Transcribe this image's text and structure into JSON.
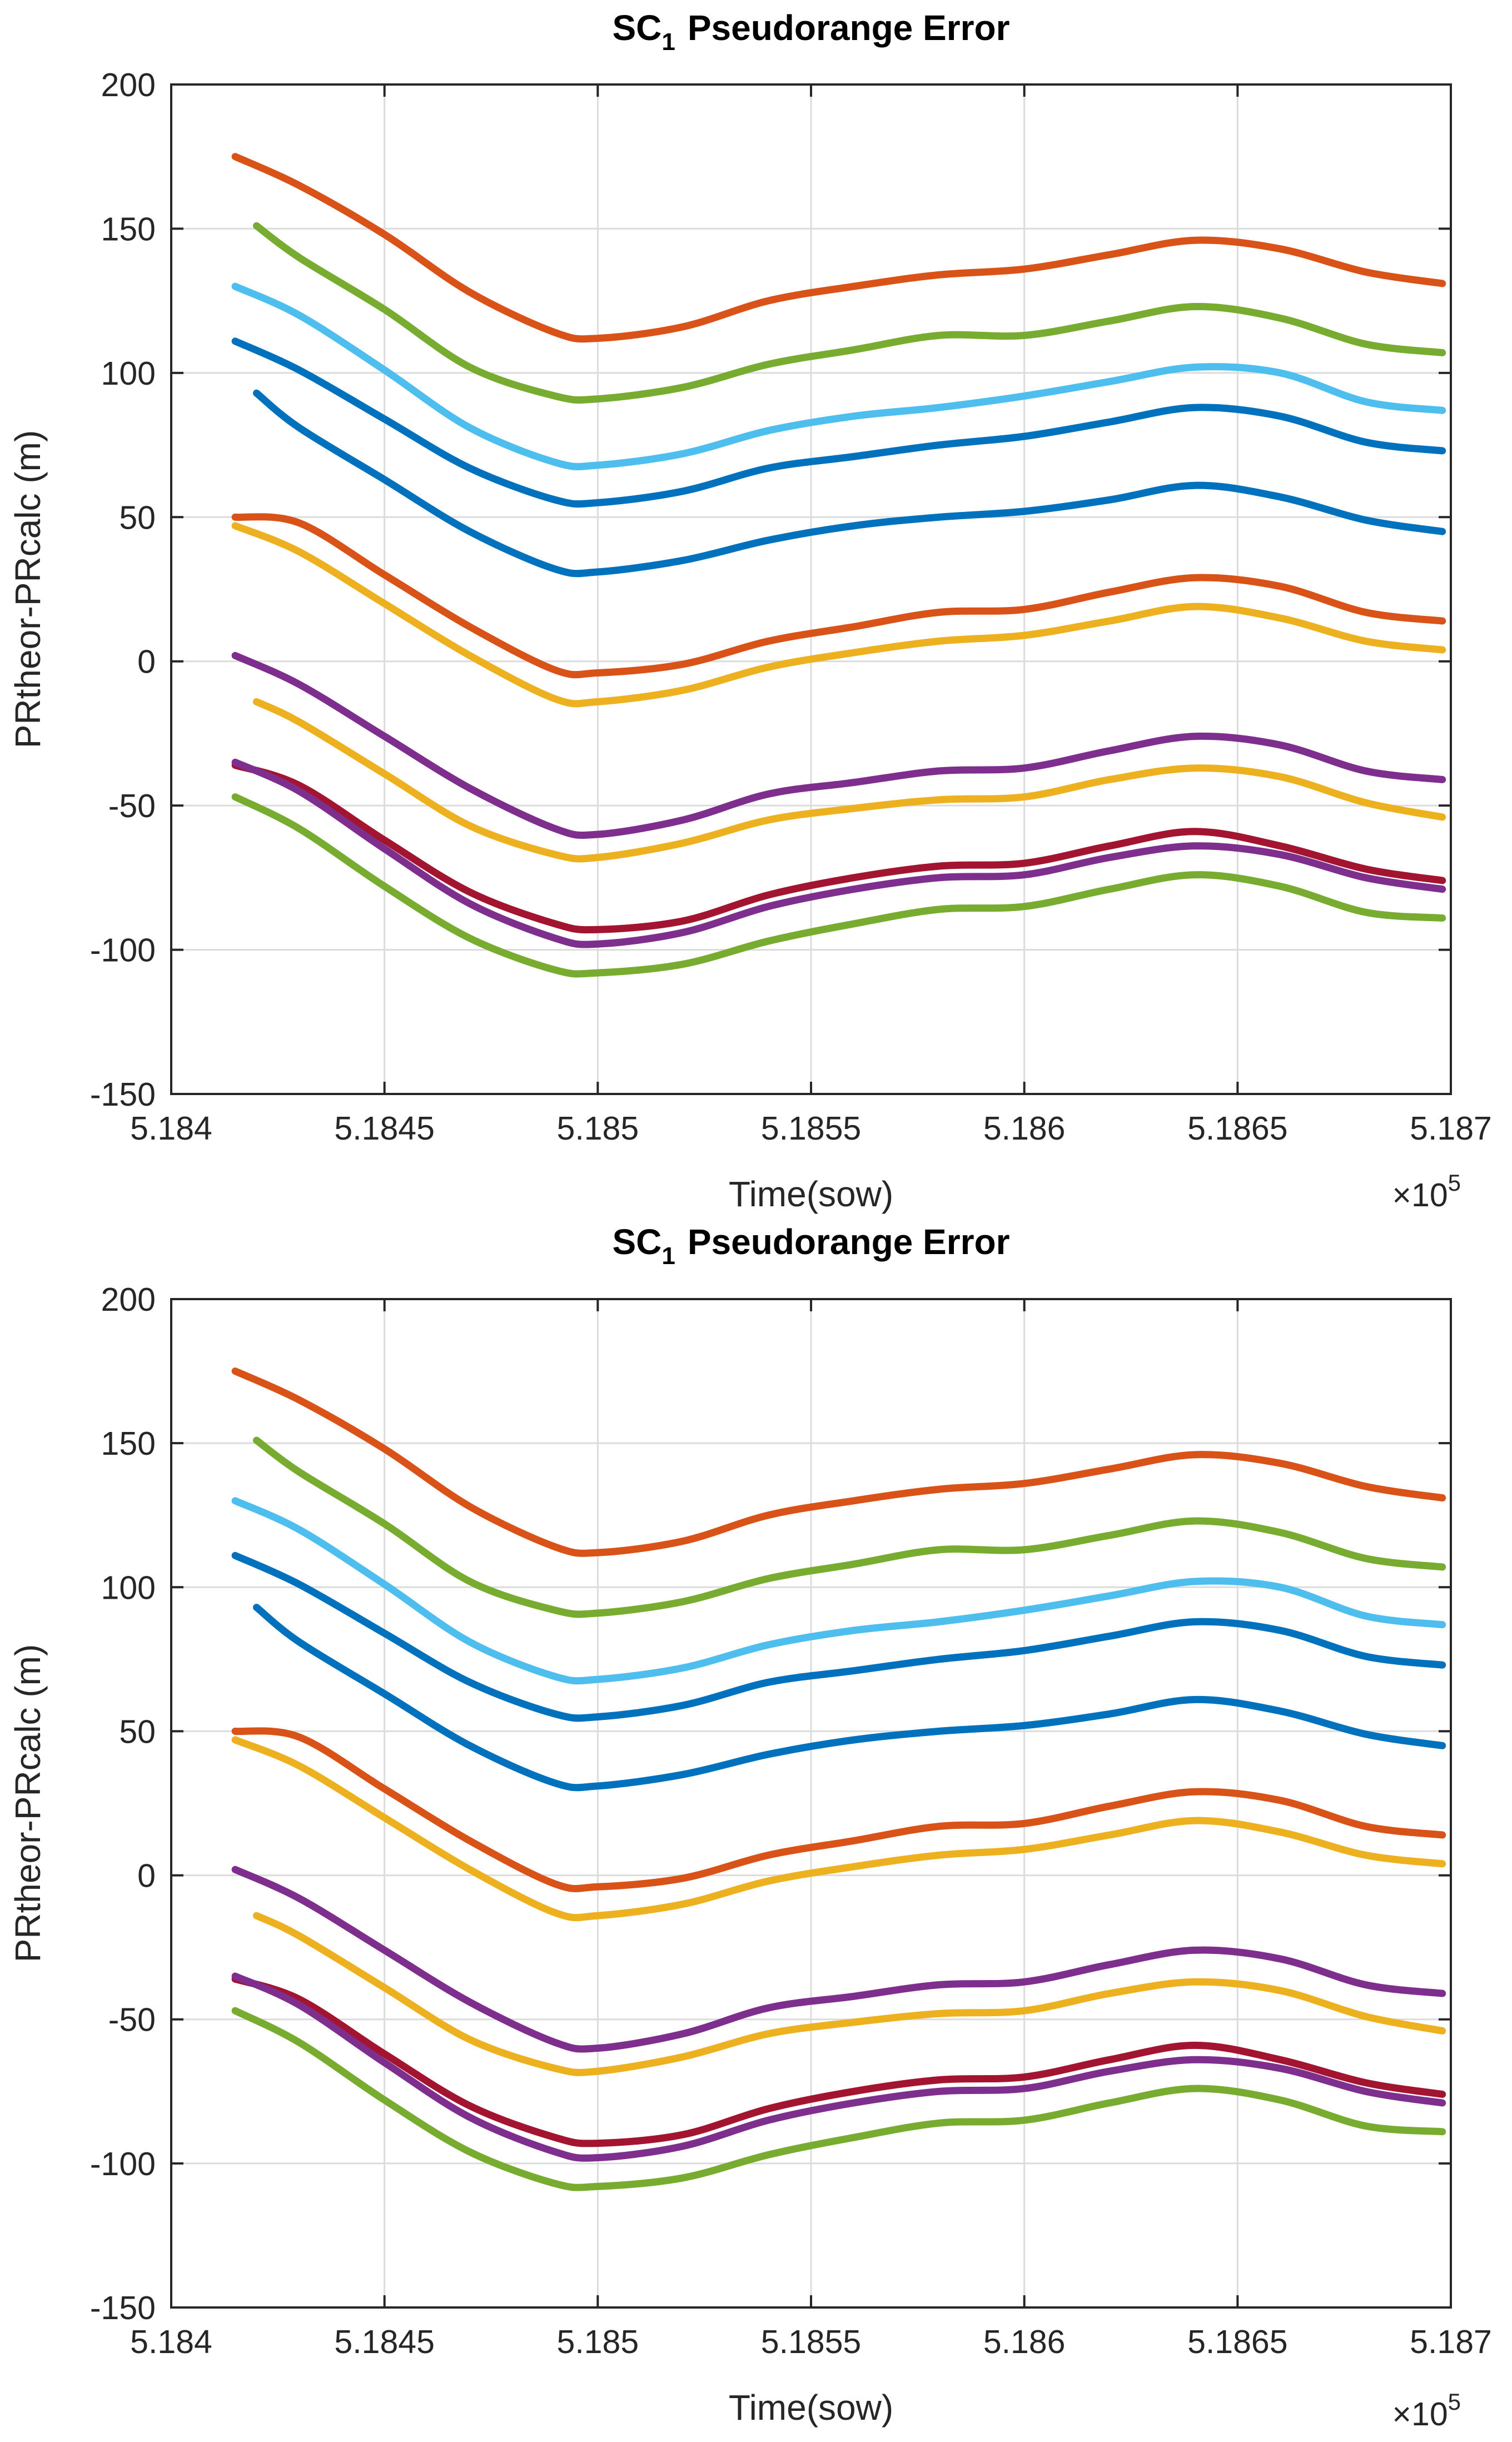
{
  "chart_data": [
    {
      "type": "line",
      "title_main": "SC",
      "title_sub": "1",
      "title_rest": "Pseudorange Error",
      "xlabel": "Time(sow)",
      "ylabel": "PRtheor-PRcalc (m)",
      "x_exponent_base": "×10",
      "x_exponent_power": "5",
      "xlim": [
        5.184,
        5.187
      ],
      "ylim": [
        -150,
        200
      ],
      "grid": true,
      "x_ticks": [
        5.184,
        5.1845,
        5.185,
        5.1855,
        5.186,
        5.1865,
        5.187
      ],
      "x_tick_labels": [
        "5.184",
        "5.1845",
        "5.185",
        "5.1855",
        "5.186",
        "5.1865",
        "5.187"
      ],
      "y_ticks": [
        -150,
        -100,
        -50,
        0,
        50,
        100,
        150,
        200
      ],
      "y_tick_labels": [
        "-150",
        "-100",
        "-50",
        "0",
        "50",
        "100",
        "150",
        "200"
      ],
      "x_keys": [
        5.18415,
        5.1843,
        5.1845,
        5.1847,
        5.1849,
        5.185,
        5.1852,
        5.1854,
        5.1856,
        5.1858,
        5.186,
        5.1862,
        5.1864,
        5.1866,
        5.1868,
        5.18698
      ],
      "series": [
        {
          "name": "series-1",
          "color": "#D95319",
          "x_start": 5.18415,
          "values": [
            175,
            165,
            148,
            128,
            114,
            112,
            116,
            125,
            130,
            134,
            136,
            141,
            146,
            143,
            135,
            131
          ]
        },
        {
          "name": "series-2",
          "color": "#77AC30",
          "x_start": 5.1842,
          "values": [
            151,
            140,
            122,
            102,
            92,
            91,
            95,
            103,
            108,
            113,
            113,
            118,
            123,
            119,
            110,
            107
          ]
        },
        {
          "name": "series-3",
          "color": "#4DBEEE",
          "x_start": 5.18415,
          "values": [
            130,
            120,
            101,
            81,
            69,
            68,
            72,
            80,
            85,
            88,
            92,
            97,
            102,
            100,
            90,
            87
          ]
        },
        {
          "name": "series-4",
          "color": "#0072BD",
          "x_start": 5.18415,
          "values": [
            111,
            101,
            84,
            67,
            56,
            55,
            59,
            67,
            71,
            75,
            78,
            83,
            88,
            85,
            76,
            73
          ]
        },
        {
          "name": "series-5",
          "color": "#0072BD",
          "x_start": 5.1842,
          "values": [
            93,
            81,
            63,
            45,
            32,
            31,
            35,
            42,
            47,
            50,
            52,
            56,
            61,
            57,
            49,
            45
          ]
        },
        {
          "name": "series-6",
          "color": "#D95319",
          "x_start": 5.18415,
          "values": [
            50,
            48,
            30,
            12,
            -3,
            -4,
            -1,
            7,
            12,
            17,
            18,
            24,
            29,
            26,
            17,
            14
          ]
        },
        {
          "name": "series-7",
          "color": "#EDB120",
          "x_start": 5.18415,
          "values": [
            47,
            38,
            20,
            2,
            -13,
            -14,
            -10,
            -2,
            3,
            7,
            9,
            14,
            19,
            15,
            7,
            4
          ]
        },
        {
          "name": "series-8",
          "color": "#7E2F8E",
          "x_start": 5.18415,
          "values": [
            2,
            -8,
            -26,
            -44,
            -58,
            -60,
            -55,
            -46,
            -42,
            -38,
            -37,
            -31,
            -26,
            -29,
            -38,
            -41
          ]
        },
        {
          "name": "series-9",
          "color": "#EDB120",
          "x_start": 5.1842,
          "values": [
            -14,
            -21,
            -39,
            -57,
            -67,
            -68,
            -63,
            -55,
            -51,
            -48,
            -47,
            -41,
            -37,
            -40,
            -49,
            -54
          ]
        },
        {
          "name": "series-10",
          "color": "#A2142F",
          "x_start": 5.18415,
          "values": [
            -36,
            -43,
            -62,
            -80,
            -91,
            -93,
            -90,
            -81,
            -75,
            -71,
            -70,
            -64,
            -59,
            -64,
            -72,
            -76
          ]
        },
        {
          "name": "series-11",
          "color": "#7E2F8E",
          "x_start": 5.18415,
          "values": [
            -35,
            -45,
            -65,
            -84,
            -96,
            -98,
            -94,
            -85,
            -79,
            -75,
            -74,
            -68,
            -64,
            -67,
            -75,
            -79
          ]
        },
        {
          "name": "series-12",
          "color": "#77AC30",
          "x_start": 5.18415,
          "values": [
            -47,
            -58,
            -78,
            -96,
            -107,
            -108,
            -105,
            -97,
            -91,
            -86,
            -85,
            -79,
            -74,
            -78,
            -87,
            -89
          ]
        }
      ]
    },
    {
      "type": "line",
      "title_main": "SC",
      "title_sub": "1",
      "title_rest": "Pseudorange Error",
      "xlabel": "Time(sow)",
      "ylabel": "PRtheor-PRcalc (m)",
      "x_exponent_base": "×10",
      "x_exponent_power": "5",
      "xlim": [
        5.184,
        5.187
      ],
      "ylim": [
        -150,
        200
      ],
      "grid": true,
      "x_ticks": [
        5.184,
        5.1845,
        5.185,
        5.1855,
        5.186,
        5.1865,
        5.187
      ],
      "x_tick_labels": [
        "5.184",
        "5.1845",
        "5.185",
        "5.1855",
        "5.186",
        "5.1865",
        "5.187"
      ],
      "y_ticks": [
        -150,
        -100,
        -50,
        0,
        50,
        100,
        150,
        200
      ],
      "y_tick_labels": [
        "-150",
        "-100",
        "-50",
        "0",
        "50",
        "100",
        "150",
        "200"
      ],
      "x_keys": [
        5.18415,
        5.1843,
        5.1845,
        5.1847,
        5.1849,
        5.185,
        5.1852,
        5.1854,
        5.1856,
        5.1858,
        5.186,
        5.1862,
        5.1864,
        5.1866,
        5.1868,
        5.18698
      ],
      "series": [
        {
          "name": "series-1",
          "color": "#D95319",
          "x_start": 5.18415,
          "values": [
            175,
            165,
            148,
            128,
            114,
            112,
            116,
            125,
            130,
            134,
            136,
            141,
            146,
            143,
            135,
            131
          ]
        },
        {
          "name": "series-2",
          "color": "#77AC30",
          "x_start": 5.1842,
          "values": [
            151,
            140,
            122,
            102,
            92,
            91,
            95,
            103,
            108,
            113,
            113,
            118,
            123,
            119,
            110,
            107
          ]
        },
        {
          "name": "series-3",
          "color": "#4DBEEE",
          "x_start": 5.18415,
          "values": [
            130,
            120,
            101,
            81,
            69,
            68,
            72,
            80,
            85,
            88,
            92,
            97,
            102,
            100,
            90,
            87
          ]
        },
        {
          "name": "series-4",
          "color": "#0072BD",
          "x_start": 5.18415,
          "values": [
            111,
            101,
            84,
            67,
            56,
            55,
            59,
            67,
            71,
            75,
            78,
            83,
            88,
            85,
            76,
            73
          ]
        },
        {
          "name": "series-5",
          "color": "#0072BD",
          "x_start": 5.1842,
          "values": [
            93,
            81,
            63,
            45,
            32,
            31,
            35,
            42,
            47,
            50,
            52,
            56,
            61,
            57,
            49,
            45
          ]
        },
        {
          "name": "series-6",
          "color": "#D95319",
          "x_start": 5.18415,
          "values": [
            50,
            48,
            30,
            12,
            -3,
            -4,
            -1,
            7,
            12,
            17,
            18,
            24,
            29,
            26,
            17,
            14
          ]
        },
        {
          "name": "series-7",
          "color": "#EDB120",
          "x_start": 5.18415,
          "values": [
            47,
            38,
            20,
            2,
            -13,
            -14,
            -10,
            -2,
            3,
            7,
            9,
            14,
            19,
            15,
            7,
            4
          ]
        },
        {
          "name": "series-8",
          "color": "#7E2F8E",
          "x_start": 5.18415,
          "values": [
            2,
            -8,
            -26,
            -44,
            -58,
            -60,
            -55,
            -46,
            -42,
            -38,
            -37,
            -31,
            -26,
            -29,
            -38,
            -41
          ]
        },
        {
          "name": "series-9",
          "color": "#EDB120",
          "x_start": 5.1842,
          "values": [
            -14,
            -21,
            -39,
            -57,
            -67,
            -68,
            -63,
            -55,
            -51,
            -48,
            -47,
            -41,
            -37,
            -40,
            -49,
            -54
          ]
        },
        {
          "name": "series-10",
          "color": "#A2142F",
          "x_start": 5.18415,
          "values": [
            -36,
            -43,
            -62,
            -80,
            -91,
            -93,
            -90,
            -81,
            -75,
            -71,
            -70,
            -64,
            -59,
            -64,
            -72,
            -76
          ]
        },
        {
          "name": "series-11",
          "color": "#7E2F8E",
          "x_start": 5.18415,
          "values": [
            -35,
            -45,
            -65,
            -84,
            -96,
            -98,
            -94,
            -85,
            -79,
            -75,
            -74,
            -68,
            -64,
            -67,
            -75,
            -79
          ]
        },
        {
          "name": "series-12",
          "color": "#77AC30",
          "x_start": 5.18415,
          "values": [
            -47,
            -58,
            -78,
            -96,
            -107,
            -108,
            -105,
            -97,
            -91,
            -86,
            -85,
            -79,
            -74,
            -78,
            -87,
            -89
          ]
        }
      ]
    }
  ]
}
